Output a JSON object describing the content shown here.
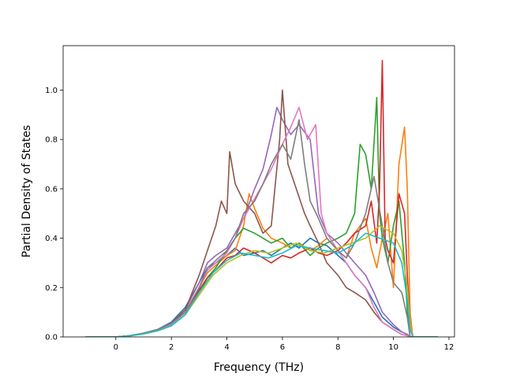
{
  "chart_data": {
    "type": "line",
    "title": "",
    "xlabel": "Frequency (THz)",
    "ylabel": "Partial Density of States",
    "xlim": [
      -1.9,
      12.2
    ],
    "ylim": [
      0.0,
      1.18
    ],
    "xticks": [
      0,
      2,
      4,
      6,
      8,
      10,
      12
    ],
    "yticks": [
      0.0,
      0.2,
      0.4,
      0.6,
      0.8,
      1.0
    ],
    "xtick_labels": [
      "0",
      "2",
      "4",
      "6",
      "8",
      "10",
      "12"
    ],
    "ytick_labels": [
      "0.0",
      "0.2",
      "0.4",
      "0.6",
      "0.8",
      "1.0"
    ],
    "grid": false,
    "legend": "none",
    "series": [
      {
        "color": "#1f77b4",
        "x": [
          -1.1,
          0,
          0.5,
          1,
          1.5,
          2,
          2.5,
          3,
          3.3,
          3.6,
          4,
          4.3,
          4.6,
          5,
          5.3,
          5.6,
          6,
          6.3,
          6.6,
          7,
          7.3,
          7.6,
          8,
          8.3,
          8.6,
          9,
          9.3,
          9.6,
          10,
          10.3,
          10.5,
          10.6,
          10.7,
          11.6
        ],
        "y": [
          0,
          0,
          0.005,
          0.015,
          0.03,
          0.06,
          0.12,
          0.22,
          0.28,
          0.3,
          0.33,
          0.36,
          0.33,
          0.34,
          0.35,
          0.33,
          0.36,
          0.38,
          0.36,
          0.4,
          0.38,
          0.37,
          0.33,
          0.3,
          0.25,
          0.2,
          0.14,
          0.08,
          0.04,
          0.02,
          0.01,
          0,
          0,
          0
        ]
      },
      {
        "color": "#ff7f0e",
        "x": [
          -1.1,
          0,
          0.5,
          1,
          1.5,
          2,
          2.5,
          3,
          3.3,
          3.6,
          4,
          4.3,
          4.6,
          4.8,
          5,
          5.3,
          5.6,
          6,
          6.3,
          6.6,
          7,
          7.3,
          7.6,
          8,
          8.3,
          8.6,
          9,
          9.2,
          9.4,
          9.6,
          9.8,
          10,
          10.2,
          10.4,
          10.5,
          10.6,
          10.7,
          11.6
        ],
        "y": [
          0,
          0,
          0.005,
          0.015,
          0.03,
          0.055,
          0.1,
          0.2,
          0.26,
          0.29,
          0.33,
          0.35,
          0.45,
          0.58,
          0.52,
          0.44,
          0.4,
          0.38,
          0.36,
          0.38,
          0.35,
          0.37,
          0.4,
          0.35,
          0.32,
          0.42,
          0.48,
          0.36,
          0.28,
          0.4,
          0.5,
          0.2,
          0.7,
          0.85,
          0.6,
          0.1,
          0,
          0
        ]
      },
      {
        "color": "#2ca02c",
        "x": [
          -1.1,
          0,
          0.5,
          1,
          1.5,
          2,
          2.5,
          3,
          3.3,
          3.6,
          4,
          4.3,
          4.6,
          5,
          5.3,
          5.6,
          6,
          6.3,
          6.6,
          7,
          7.3,
          7.6,
          8,
          8.3,
          8.6,
          8.8,
          9,
          9.2,
          9.4,
          9.5,
          9.6,
          9.8,
          10,
          10.2,
          10.4,
          10.5,
          10.6,
          10.7,
          11.6
        ],
        "y": [
          0,
          0,
          0.005,
          0.013,
          0.025,
          0.045,
          0.09,
          0.18,
          0.24,
          0.28,
          0.35,
          0.4,
          0.44,
          0.42,
          0.4,
          0.38,
          0.4,
          0.36,
          0.38,
          0.33,
          0.36,
          0.38,
          0.4,
          0.42,
          0.5,
          0.78,
          0.74,
          0.6,
          0.97,
          0.5,
          0.4,
          0.3,
          0.45,
          0.55,
          0.3,
          0.1,
          0,
          0,
          0
        ]
      },
      {
        "color": "#d62728",
        "x": [
          -1.1,
          0,
          0.5,
          1,
          1.5,
          2,
          2.5,
          3,
          3.3,
          3.6,
          4,
          4.3,
          4.6,
          5,
          5.3,
          5.6,
          6,
          6.3,
          6.6,
          7,
          7.3,
          7.6,
          8,
          8.3,
          8.6,
          9,
          9.2,
          9.4,
          9.5,
          9.6,
          9.7,
          9.8,
          10,
          10.2,
          10.4,
          10.5,
          10.6,
          10.7,
          11.6
        ],
        "y": [
          0,
          0,
          0.005,
          0.013,
          0.028,
          0.05,
          0.1,
          0.19,
          0.24,
          0.27,
          0.32,
          0.33,
          0.36,
          0.34,
          0.32,
          0.3,
          0.33,
          0.32,
          0.34,
          0.36,
          0.34,
          0.33,
          0.35,
          0.38,
          0.42,
          0.45,
          0.55,
          0.38,
          0.6,
          1.12,
          0.4,
          0.35,
          0.3,
          0.58,
          0.5,
          0.25,
          0.05,
          0,
          0
        ]
      },
      {
        "color": "#9467bd",
        "x": [
          -1.1,
          0,
          0.5,
          1,
          1.5,
          2,
          2.5,
          3,
          3.3,
          3.6,
          4,
          4.3,
          4.6,
          5,
          5.3,
          5.6,
          5.8,
          6,
          6.3,
          6.6,
          7,
          7.3,
          7.6,
          8,
          8.3,
          8.6,
          9,
          9.3,
          9.6,
          10,
          10.3,
          10.5,
          10.6,
          10.7,
          11.6
        ],
        "y": [
          0,
          0,
          0.005,
          0.015,
          0.03,
          0.055,
          0.11,
          0.22,
          0.3,
          0.33,
          0.36,
          0.42,
          0.48,
          0.6,
          0.68,
          0.82,
          0.93,
          0.88,
          0.82,
          0.86,
          0.8,
          0.5,
          0.42,
          0.38,
          0.34,
          0.3,
          0.25,
          0.18,
          0.1,
          0.05,
          0.02,
          0.01,
          0,
          0,
          0
        ]
      },
      {
        "color": "#8c564b",
        "x": [
          -1.1,
          0,
          0.5,
          1,
          1.5,
          2,
          2.5,
          3,
          3.3,
          3.6,
          3.8,
          4,
          4.1,
          4.3,
          4.6,
          5,
          5.3,
          5.6,
          5.9,
          6,
          6.2,
          6.5,
          6.8,
          7,
          7.3,
          7.6,
          8,
          8.3,
          8.6,
          9,
          9.3,
          9.6,
          10,
          10.3,
          10.5,
          10.6,
          10.7,
          11.6
        ],
        "y": [
          0,
          0,
          0.005,
          0.015,
          0.03,
          0.055,
          0.11,
          0.25,
          0.35,
          0.45,
          0.55,
          0.5,
          0.75,
          0.62,
          0.55,
          0.5,
          0.42,
          0.45,
          0.8,
          1.0,
          0.7,
          0.6,
          0.5,
          0.45,
          0.38,
          0.3,
          0.25,
          0.2,
          0.18,
          0.15,
          0.1,
          0.06,
          0.03,
          0.01,
          0.005,
          0,
          0,
          0
        ]
      },
      {
        "color": "#e377c2",
        "x": [
          -1.1,
          0,
          0.5,
          1,
          1.5,
          2,
          2.5,
          3,
          3.3,
          3.6,
          4,
          4.3,
          4.6,
          5,
          5.3,
          5.6,
          6,
          6.3,
          6.6,
          6.9,
          7.2,
          7.4,
          7.6,
          8,
          8.3,
          8.6,
          9,
          9.3,
          9.6,
          10,
          10.3,
          10.5,
          10.6,
          10.7,
          11.6
        ],
        "y": [
          0,
          0,
          0.005,
          0.014,
          0.028,
          0.05,
          0.1,
          0.2,
          0.27,
          0.3,
          0.34,
          0.4,
          0.48,
          0.56,
          0.62,
          0.68,
          0.78,
          0.85,
          0.93,
          0.8,
          0.86,
          0.5,
          0.42,
          0.35,
          0.3,
          0.25,
          0.2,
          0.12,
          0.06,
          0.03,
          0.01,
          0.005,
          0,
          0,
          0
        ]
      },
      {
        "color": "#7f7f7f",
        "x": [
          -1.1,
          0,
          0.5,
          1,
          1.5,
          2,
          2.5,
          3,
          3.3,
          3.6,
          4,
          4.3,
          4.6,
          5,
          5.3,
          5.6,
          6,
          6.3,
          6.6,
          6.8,
          7,
          7.3,
          7.6,
          8,
          8.3,
          8.6,
          9,
          9.3,
          9.6,
          9.8,
          10,
          10.3,
          10.5,
          10.6,
          10.7,
          11.6
        ],
        "y": [
          0,
          0,
          0.005,
          0.015,
          0.03,
          0.055,
          0.1,
          0.2,
          0.28,
          0.31,
          0.35,
          0.4,
          0.5,
          0.55,
          0.62,
          0.7,
          0.78,
          0.72,
          0.88,
          0.7,
          0.55,
          0.48,
          0.4,
          0.35,
          0.32,
          0.38,
          0.5,
          0.65,
          0.45,
          0.3,
          0.22,
          0.18,
          0.08,
          0,
          0,
          0
        ]
      },
      {
        "color": "#bcbd22",
        "x": [
          -1.1,
          0,
          0.5,
          1,
          1.5,
          2,
          2.5,
          3,
          3.5,
          4,
          4.5,
          5,
          5.5,
          6,
          6.5,
          7,
          7.5,
          8,
          8.5,
          9,
          9.5,
          10,
          10.3,
          10.5,
          10.6,
          10.7,
          11.6
        ],
        "y": [
          0,
          0,
          0.004,
          0.012,
          0.025,
          0.045,
          0.09,
          0.17,
          0.25,
          0.3,
          0.33,
          0.35,
          0.34,
          0.36,
          0.38,
          0.35,
          0.34,
          0.36,
          0.38,
          0.4,
          0.45,
          0.42,
          0.35,
          0.2,
          0.05,
          0,
          0
        ]
      },
      {
        "color": "#17becf",
        "x": [
          -1.1,
          0,
          0.5,
          1,
          1.5,
          2,
          2.5,
          3,
          3.5,
          4,
          4.5,
          5,
          5.5,
          6,
          6.5,
          7,
          7.5,
          8,
          8.5,
          9,
          9.5,
          10,
          10.3,
          10.5,
          10.6,
          10.7,
          11.6
        ],
        "y": [
          0,
          0,
          0.004,
          0.012,
          0.025,
          0.045,
          0.09,
          0.18,
          0.26,
          0.31,
          0.34,
          0.33,
          0.32,
          0.34,
          0.37,
          0.36,
          0.35,
          0.34,
          0.37,
          0.42,
          0.4,
          0.38,
          0.3,
          0.15,
          0.03,
          0,
          0
        ]
      }
    ]
  }
}
